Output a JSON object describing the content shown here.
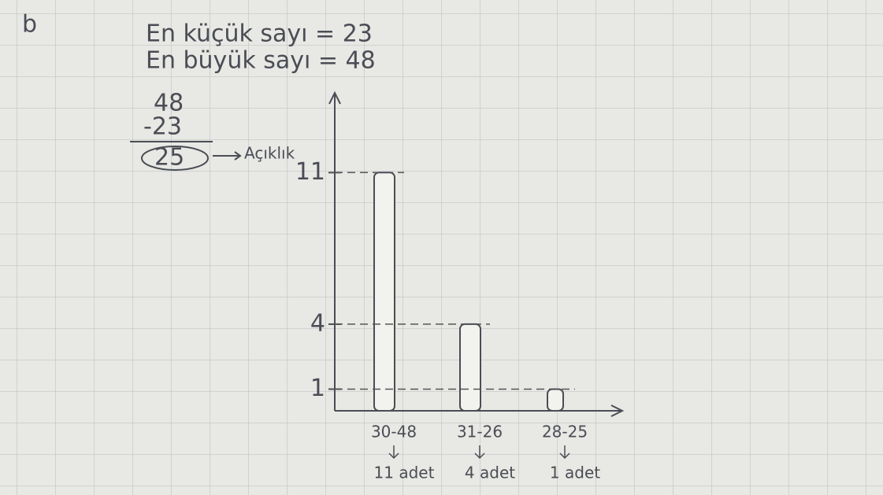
{
  "notes": {
    "label": "b",
    "min_line": "En küçük sayı = 23",
    "max_line": "En büyük sayı = 48",
    "calc_top": "48",
    "calc_sub": "-23",
    "calc_result": "25",
    "calc_name": "Açıklık"
  },
  "chart_data": {
    "type": "bar",
    "categories": [
      "30-48",
      "31-26",
      "28-25"
    ],
    "values": [
      11,
      4,
      1
    ],
    "category_notes": [
      "11 adet",
      "4 adet",
      "1 adet"
    ],
    "color": "#f2f2ee",
    "ylim": [
      0,
      14.5
    ],
    "yticks": [
      1,
      4,
      11
    ],
    "guides": true
  }
}
